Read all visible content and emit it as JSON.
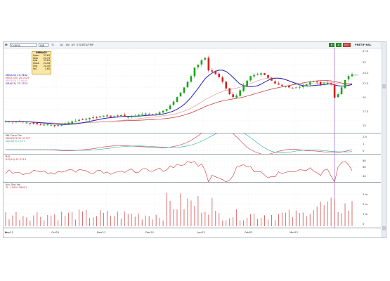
{
  "toolbar": {
    "symbol": "M",
    "exchange": "NSE",
    "ticker_field": "CLNEIA",
    "currency": "INR",
    "interval": "TL",
    "period_buttons": [
      "1D",
      "1W",
      "1M",
      "STD"
    ],
    "period_extra": "BTD/TMP",
    "right_buttons": [
      {
        "label": "B",
        "color": "#2e8b2e"
      },
      {
        "label": "A",
        "color": "#2e8b2e"
      },
      {
        "label": "EXT",
        "color": "#c0392b"
      }
    ],
    "right_label": "PRETIF-NSL"
  },
  "info_box": {
    "title": "09Mar22",
    "rows": [
      {
        "label": "Open",
        "value": "23.63"
      },
      {
        "label": "High",
        "value": "24.74"
      },
      {
        "label": "Low",
        "value": "23.61"
      },
      {
        "label": "Close",
        "value": "24.18"
      },
      {
        "label": "Chg",
        "value": "24.43"
      },
      {
        "label": "Vol",
        "value": "1.60"
      }
    ]
  },
  "price_legend": [
    {
      "text": "MAV(20)  23.7462",
      "color": "#0000cc"
    },
    {
      "text": "MAV(100)  20.0025",
      "color": "#cc3333"
    },
    {
      "text": "MAV(50)  21.8600",
      "color": "#e08c8c"
    },
    {
      "text": "SMA(21)  22.1374",
      "color": "#2222aa"
    }
  ],
  "macd_legend": [
    {
      "text": "MA Conv Div",
      "color": "#333333"
    },
    {
      "text": "MACD(26,12)   0.377",
      "color": "#cc3333"
    },
    {
      "text": "Signal(9)   0.117",
      "color": "#2aa5a5"
    }
  ],
  "rsi_legend": [
    {
      "text": "RSI",
      "color": "#333333"
    },
    {
      "text": "RSI(14)   61.2213",
      "color": "#cc3333"
    }
  ],
  "vol_legend": [
    {
      "text": "Acc Dist Vol",
      "color": "#333333"
    },
    {
      "text": "TL   -1083+38001",
      "color": "#cc3333"
    }
  ],
  "price_ticks": [
    "27.5",
    "25",
    "24.3",
    "22.5",
    "20",
    "17.5",
    "15"
  ],
  "macd_ticks": [
    "2.5",
    "1",
    "0"
  ],
  "rsi_ticks": [
    "80",
    "60",
    "40"
  ],
  "vol_ticks": [
    "3 m",
    "2 m",
    "1 m",
    "0"
  ],
  "x_ticks": [
    "Sep21",
    "Oct21",
    "Nov21",
    "Dec21",
    "Jan22",
    "Feb22",
    "Mar22"
  ],
  "colors": {
    "up": "#18a318",
    "down": "#d42020",
    "sma": "#1f1fb0",
    "ma_long": "#c84040",
    "ma_mid": "#e0a0a0",
    "cursor": "#9966cc"
  },
  "chart_data": {
    "type": "candlestick",
    "x_labels": [
      "Sep21",
      "Oct21",
      "Nov21",
      "Dec21",
      "Jan22",
      "Feb22",
      "Mar22"
    ],
    "last_price": 24.18,
    "ylim": [
      14,
      29
    ],
    "close": [
      16.0,
      16.0,
      15.9,
      15.95,
      16.0,
      15.9,
      15.8,
      15.7,
      15.6,
      15.5,
      15.4,
      15.45,
      15.5,
      15.4,
      15.3,
      15.35,
      15.4,
      15.6,
      15.8,
      16.0,
      16.1,
      16.3,
      16.4,
      16.5,
      16.6,
      16.6,
      16.7,
      16.9,
      17.0,
      16.9,
      16.8,
      16.9,
      17.0,
      17.1,
      16.9,
      16.8,
      16.9,
      17.0,
      17.2,
      17.3,
      17.4,
      17.3,
      17.2,
      17.4,
      17.6,
      17.9,
      18.2,
      18.8,
      19.5,
      20.3,
      21.1,
      22.0,
      23.0,
      24.0,
      25.5,
      26.0,
      26.8,
      27.2,
      25.0,
      24.8,
      24.3,
      23.8,
      23.0,
      21.8,
      20.8,
      20.3,
      20.6,
      21.5,
      22.4,
      23.2,
      24.0,
      24.2,
      24.3,
      24.5,
      24.2,
      23.7,
      23.2,
      22.7,
      22.5,
      22.3,
      22.2,
      22.0,
      21.9,
      22.0,
      22.1,
      22.3,
      22.6,
      22.9,
      23.1,
      22.9,
      22.5,
      22.7,
      22.8,
      22.5,
      20.2,
      20.8,
      22.0,
      23.3,
      24.0,
      24.3
    ]
  }
}
